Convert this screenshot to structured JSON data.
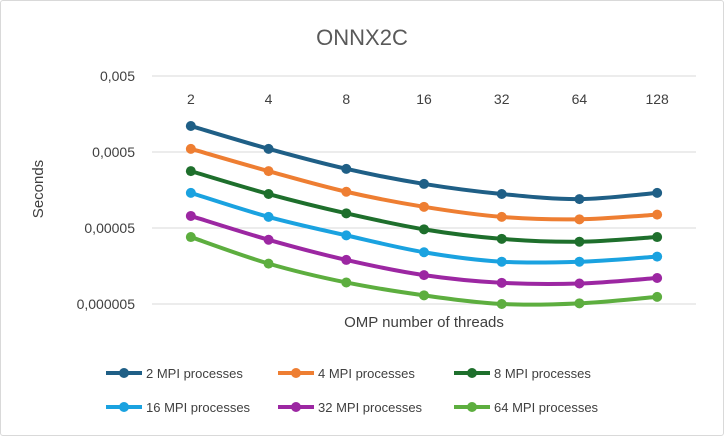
{
  "chart_data": {
    "type": "line",
    "title": "ONNX2C",
    "xlabel": "OMP number of threads",
    "ylabel": "Seconds",
    "categories": [
      "2",
      "4",
      "8",
      "16",
      "32",
      "64",
      "128"
    ],
    "yscale": "log",
    "ylim": [
      5e-06,
      0.005
    ],
    "yticks": [
      "0,005",
      "0,0005",
      "0,00005",
      "0,000005"
    ],
    "ytick_values": [
      0.005,
      0.0005,
      5e-05,
      5e-06
    ],
    "x_axis_position": "top",
    "grid": true,
    "legend_position": "bottom",
    "series": [
      {
        "name": "2 MPI processes",
        "color": "#1F5F86",
        "values": [
          0.0011,
          0.00055,
          0.0003,
          0.00019,
          0.00014,
          0.00012,
          0.000145
        ]
      },
      {
        "name": "4 MPI processes",
        "color": "#EE7E32",
        "values": [
          0.00055,
          0.00028,
          0.00015,
          9.5e-05,
          7e-05,
          6.5e-05,
          7.5e-05
        ]
      },
      {
        "name": "8 MPI processes",
        "color": "#1E6F2C",
        "values": [
          0.00028,
          0.00014,
          7.8e-05,
          4.8e-05,
          3.6e-05,
          3.3e-05,
          3.8e-05
        ]
      },
      {
        "name": "16 MPI processes",
        "color": "#1AA2E0",
        "values": [
          0.000145,
          7e-05,
          4e-05,
          2.4e-05,
          1.8e-05,
          1.8e-05,
          2.1e-05
        ]
      },
      {
        "name": "32 MPI processes",
        "color": "#9C27A2",
        "values": [
          7.2e-05,
          3.5e-05,
          1.9e-05,
          1.2e-05,
          9.5e-06,
          9.3e-06,
          1.1e-05
        ]
      },
      {
        "name": "64 MPI processes",
        "color": "#5DAE3F",
        "values": [
          3.8e-05,
          1.7e-05,
          9.6e-06,
          6.5e-06,
          5e-06,
          5.1e-06,
          6.2e-06
        ]
      }
    ]
  }
}
